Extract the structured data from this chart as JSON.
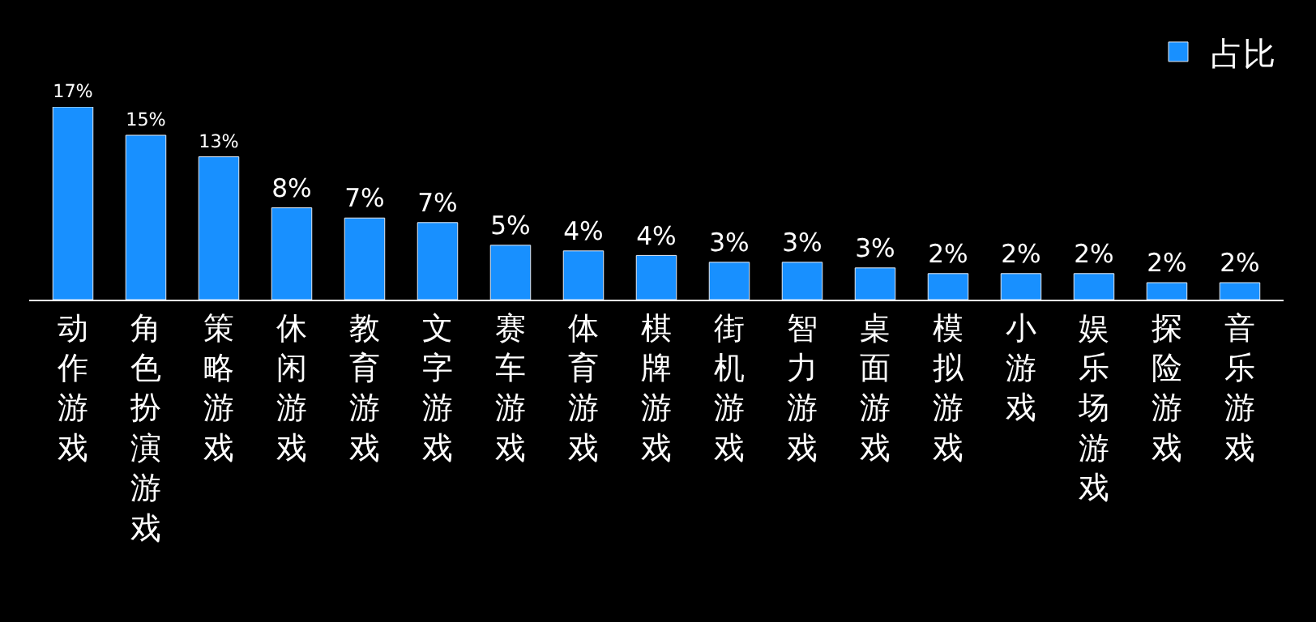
{
  "chart_data": {
    "type": "bar",
    "categories": [
      "动作游戏",
      "角色扮演游戏",
      "策略游戏",
      "休闲游戏",
      "教育游戏",
      "文字游戏",
      "赛车游戏",
      "体育游戏",
      "棋牌游戏",
      "街机游戏",
      "智力游戏",
      "桌面游戏",
      "模拟游戏",
      "小游戏",
      "娱乐场游戏",
      "探险游戏",
      "音乐游戏"
    ],
    "series": [
      {
        "name": "占比",
        "color": "#1890ff",
        "values": [
          17.0,
          14.5,
          12.6,
          8.1,
          7.2,
          6.8,
          4.8,
          4.3,
          3.9,
          3.3,
          3.3,
          2.8,
          2.3,
          2.3,
          2.3,
          1.5,
          1.5
        ],
        "value_labels": [
          "17%",
          "15%",
          "13%",
          "8%",
          "7%",
          "7%",
          "5%",
          "4%",
          "4%",
          "3%",
          "3%",
          "3%",
          "2%",
          "2%",
          "2%",
          "2%",
          "2%"
        ]
      }
    ],
    "legend": "top right",
    "grid": false
  }
}
